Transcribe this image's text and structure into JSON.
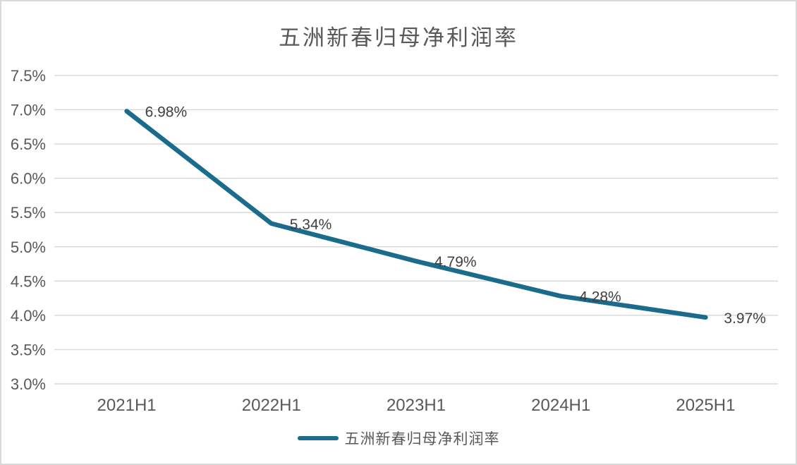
{
  "chart_data": {
    "type": "line",
    "title": "五洲新春归母净利润率",
    "categories": [
      "2021H1",
      "2022H1",
      "2023H1",
      "2024H1",
      "2025H1"
    ],
    "series": [
      {
        "name": "五洲新春归母净利润率",
        "values": [
          6.98,
          5.34,
          4.79,
          4.28,
          3.97
        ]
      }
    ],
    "data_labels": [
      "6.98%",
      "5.34%",
      "4.79%",
      "4.28%",
      "3.97%"
    ],
    "y_ticks": [
      "7.5%",
      "7.0%",
      "6.5%",
      "6.0%",
      "5.5%",
      "5.0%",
      "4.5%",
      "4.0%",
      "3.5%",
      "3.0%"
    ],
    "ylim": [
      3.0,
      7.5
    ],
    "y_step": 0.5,
    "grid": true,
    "legend_position": "bottom",
    "colors": {
      "line": "#1b6b8c",
      "grid": "#d9d9d9",
      "title_text": "#595959",
      "tick_text": "#595959",
      "data_label_text": "#404040",
      "background": "#ffffff",
      "border": "#d9d9d9"
    }
  }
}
